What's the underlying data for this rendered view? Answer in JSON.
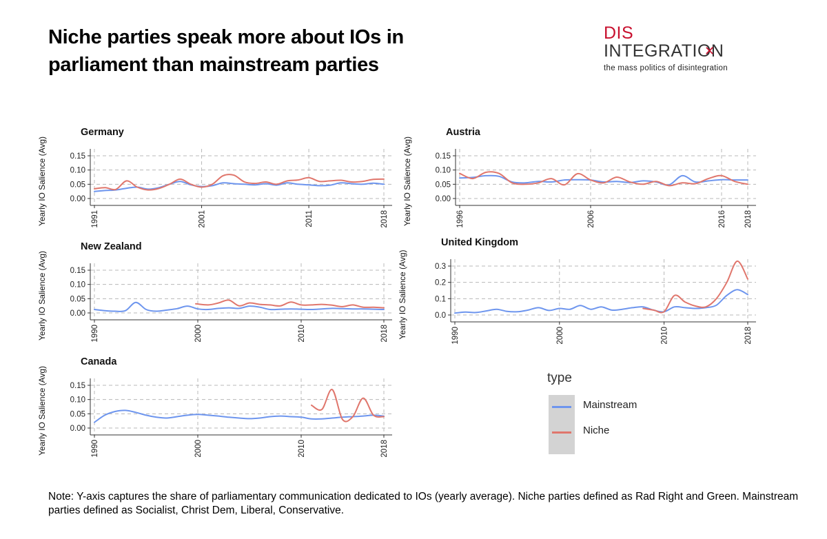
{
  "page": {
    "title": "Niche parties speak more about IOs in parliament than mainstream parties",
    "note": "Note: Y-axis captures the share of parliamentary communication dedicated to IOs (yearly average). Niche parties defined as Rad Right and Green. Mainstream parties defined as Socialist, Christ Dem, Liberal, Conservative."
  },
  "logo": {
    "line1": "DIS",
    "line2": "INTEGRATION",
    "tagline": "the mass politics of disintegration",
    "x_mark": "✕"
  },
  "legend": {
    "title": "type",
    "items": [
      {
        "label": "Mainstream",
        "color": "#6d95ee"
      },
      {
        "label": "Niche",
        "color": "#e0766c"
      }
    ]
  },
  "chart_data": [
    {
      "type": "line",
      "title": "Germany",
      "ylabel": "Yearly IO Salience (Avg)",
      "xlim": [
        1991,
        2018
      ],
      "ylim": [
        0,
        0.15
      ],
      "xticks": [
        1991,
        2001,
        2011,
        2018
      ],
      "xtick_labels": [
        "1991",
        "2001",
        "2011",
        "2018"
      ],
      "yticks": [
        0,
        0.05,
        0.1,
        0.15
      ],
      "ytick_labels": [
        "0.00",
        "0.05",
        "0.10",
        "0.15"
      ],
      "series": [
        {
          "name": "Mainstream",
          "x": [
            1991,
            1992,
            1993,
            1994,
            1995,
            1996,
            1997,
            1998,
            1999,
            2000,
            2001,
            2002,
            2003,
            2004,
            2005,
            2006,
            2007,
            2008,
            2009,
            2010,
            2011,
            2012,
            2013,
            2014,
            2015,
            2016,
            2017,
            2018
          ],
          "values": [
            0.025,
            0.028,
            0.03,
            0.036,
            0.04,
            0.033,
            0.038,
            0.05,
            0.06,
            0.048,
            0.042,
            0.045,
            0.055,
            0.052,
            0.05,
            0.048,
            0.052,
            0.047,
            0.055,
            0.05,
            0.048,
            0.045,
            0.047,
            0.055,
            0.052,
            0.05,
            0.054,
            0.05
          ]
        },
        {
          "name": "Niche",
          "x": [
            1991,
            1992,
            1993,
            1994,
            1995,
            1996,
            1997,
            1998,
            1999,
            2000,
            2001,
            2002,
            2003,
            2004,
            2005,
            2006,
            2007,
            2008,
            2009,
            2010,
            2011,
            2012,
            2013,
            2014,
            2015,
            2016,
            2017,
            2018
          ],
          "values": [
            0.034,
            0.038,
            0.032,
            0.062,
            0.04,
            0.03,
            0.035,
            0.05,
            0.068,
            0.05,
            0.04,
            0.05,
            0.08,
            0.082,
            0.058,
            0.053,
            0.058,
            0.05,
            0.062,
            0.065,
            0.073,
            0.06,
            0.062,
            0.064,
            0.058,
            0.06,
            0.067,
            0.068
          ]
        }
      ]
    },
    {
      "type": "line",
      "title": "Austria",
      "ylabel": "Yearly IO Salience (Avg)",
      "xlim": [
        1996,
        2018
      ],
      "ylim": [
        0,
        0.15
      ],
      "xticks": [
        1996,
        2006,
        2016,
        2018
      ],
      "xtick_labels": [
        "1996",
        "2006",
        "2016",
        "2018"
      ],
      "yticks": [
        0,
        0.05,
        0.1,
        0.15
      ],
      "ytick_labels": [
        "0.00",
        "0.05",
        "0.10",
        "0.15"
      ],
      "series": [
        {
          "name": "Mainstream",
          "x": [
            1996,
            1997,
            1998,
            1999,
            2000,
            2001,
            2002,
            2003,
            2004,
            2005,
            2006,
            2007,
            2008,
            2009,
            2010,
            2011,
            2012,
            2013,
            2014,
            2015,
            2016,
            2017,
            2018
          ],
          "values": [
            0.072,
            0.074,
            0.08,
            0.078,
            0.058,
            0.055,
            0.06,
            0.058,
            0.065,
            0.066,
            0.065,
            0.058,
            0.06,
            0.056,
            0.062,
            0.058,
            0.048,
            0.08,
            0.058,
            0.062,
            0.066,
            0.065,
            0.065
          ]
        },
        {
          "name": "Niche",
          "x": [
            1996,
            1997,
            1998,
            1999,
            2000,
            2001,
            2002,
            2003,
            2004,
            2005,
            2006,
            2007,
            2008,
            2009,
            2010,
            2011,
            2012,
            2013,
            2014,
            2015,
            2016,
            2017,
            2018
          ],
          "values": [
            0.088,
            0.07,
            0.092,
            0.088,
            0.055,
            0.05,
            0.055,
            0.07,
            0.048,
            0.087,
            0.065,
            0.055,
            0.075,
            0.058,
            0.05,
            0.06,
            0.045,
            0.055,
            0.052,
            0.07,
            0.08,
            0.06,
            0.05
          ]
        }
      ]
    },
    {
      "type": "line",
      "title": "New Zealand",
      "ylabel": "Yearly IO Salience (Avg)",
      "xlim": [
        1990,
        2018
      ],
      "ylim": [
        0,
        0.15
      ],
      "xticks": [
        1990,
        2000,
        2010,
        2018
      ],
      "xtick_labels": [
        "1990",
        "2000",
        "2010",
        "2018"
      ],
      "yticks": [
        0,
        0.05,
        0.1,
        0.15
      ],
      "ytick_labels": [
        "0.00",
        "0.05",
        "0.10",
        "0.15"
      ],
      "series": [
        {
          "name": "Mainstream",
          "x": [
            1990,
            1991,
            1992,
            1993,
            1994,
            1995,
            1996,
            1997,
            1998,
            1999,
            2000,
            2001,
            2002,
            2003,
            2004,
            2005,
            2006,
            2007,
            2008,
            2009,
            2010,
            2011,
            2012,
            2013,
            2014,
            2015,
            2016,
            2017,
            2018
          ],
          "values": [
            0.012,
            0.008,
            0.006,
            0.008,
            0.037,
            0.012,
            0.006,
            0.01,
            0.015,
            0.024,
            0.014,
            0.012,
            0.016,
            0.018,
            0.016,
            0.024,
            0.02,
            0.012,
            0.013,
            0.014,
            0.013,
            0.012,
            0.014,
            0.016,
            0.015,
            0.014,
            0.014,
            0.013,
            0.012
          ]
        },
        {
          "name": "Niche",
          "x": [
            1999.8,
            2001,
            2002,
            2003,
            2004,
            2005,
            2006,
            2007,
            2008,
            2009,
            2010,
            2011,
            2012,
            2013,
            2014,
            2015,
            2016,
            2017,
            2018
          ],
          "values": [
            0.032,
            0.028,
            0.035,
            0.045,
            0.025,
            0.035,
            0.03,
            0.028,
            0.025,
            0.038,
            0.028,
            0.028,
            0.03,
            0.027,
            0.022,
            0.028,
            0.02,
            0.02,
            0.018
          ]
        }
      ]
    },
    {
      "type": "line",
      "title": "United Kingdom",
      "ylabel": "Yearly IO Salience (Avg)",
      "xlim": [
        1990,
        2018
      ],
      "ylim": [
        0,
        0.35
      ],
      "xticks": [
        1990,
        2000,
        2010,
        2018
      ],
      "xtick_labels": [
        "1990",
        "2000",
        "2010",
        "2018"
      ],
      "yticks": [
        0,
        0.1,
        0.2,
        0.3
      ],
      "ytick_labels": [
        "0.0",
        "0.1",
        "0.2",
        "0.3"
      ],
      "series": [
        {
          "name": "Mainstream",
          "x": [
            1990,
            1991,
            1992,
            1993,
            1994,
            1995,
            1996,
            1997,
            1998,
            1999,
            2000,
            2001,
            2002,
            2003,
            2004,
            2005,
            2006,
            2007,
            2008,
            2009,
            2010,
            2011,
            2012,
            2013,
            2014,
            2015,
            2016,
            2017,
            2018
          ],
          "values": [
            0.012,
            0.018,
            0.015,
            0.025,
            0.035,
            0.022,
            0.02,
            0.03,
            0.045,
            0.028,
            0.04,
            0.035,
            0.058,
            0.035,
            0.05,
            0.03,
            0.035,
            0.045,
            0.05,
            0.03,
            0.02,
            0.05,
            0.045,
            0.04,
            0.045,
            0.06,
            0.12,
            0.155,
            0.125
          ]
        },
        {
          "name": "Niche",
          "x": [
            2008,
            2009,
            2010,
            2011,
            2012,
            2013,
            2014,
            2015,
            2016,
            2017,
            2018
          ],
          "values": [
            0.04,
            0.03,
            0.02,
            0.12,
            0.08,
            0.055,
            0.05,
            0.1,
            0.2,
            0.33,
            0.22
          ]
        }
      ]
    },
    {
      "type": "line",
      "title": "Canada",
      "ylabel": "Yearly IO Salience (Avg)",
      "xlim": [
        1990,
        2018
      ],
      "ylim": [
        0,
        0.15
      ],
      "xticks": [
        1990,
        2000,
        2010,
        2018
      ],
      "xtick_labels": [
        "1990",
        "2000",
        "2010",
        "2018"
      ],
      "yticks": [
        0,
        0.05,
        0.1,
        0.15
      ],
      "ytick_labels": [
        "0.00",
        "0.05",
        "0.10",
        "0.15"
      ],
      "series": [
        {
          "name": "Mainstream",
          "x": [
            1990,
            1991,
            1992,
            1993,
            1994,
            1995,
            1996,
            1997,
            1998,
            1999,
            2000,
            2001,
            2002,
            2003,
            2004,
            2005,
            2006,
            2007,
            2008,
            2009,
            2010,
            2011,
            2012,
            2013,
            2014,
            2015,
            2016,
            2017,
            2018
          ],
          "values": [
            0.02,
            0.045,
            0.058,
            0.062,
            0.055,
            0.045,
            0.038,
            0.035,
            0.04,
            0.045,
            0.048,
            0.045,
            0.042,
            0.038,
            0.035,
            0.033,
            0.035,
            0.04,
            0.042,
            0.04,
            0.038,
            0.032,
            0.032,
            0.035,
            0.038,
            0.04,
            0.042,
            0.045,
            0.042
          ]
        },
        {
          "name": "Niche",
          "x": [
            2011,
            2012,
            2013,
            2014,
            2015,
            2016,
            2017,
            2018
          ],
          "values": [
            0.08,
            0.065,
            0.135,
            0.03,
            0.04,
            0.105,
            0.045,
            0.04
          ]
        }
      ]
    }
  ]
}
